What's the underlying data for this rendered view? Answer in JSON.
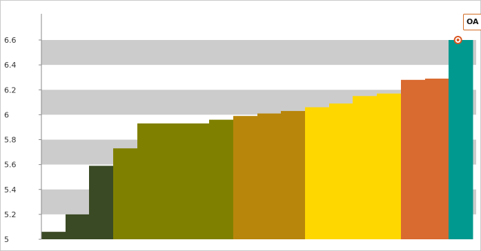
{
  "chart_data": {
    "type": "bar",
    "title": "",
    "xlabel": "",
    "ylabel": "",
    "ylim": [
      5,
      6.7
    ],
    "yticks": [
      5,
      5.2,
      5.4,
      5.6,
      5.8,
      6,
      6.2,
      6.4,
      6.6
    ],
    "ytick_labels": [
      "5",
      "5.2",
      "5.4",
      "5.6",
      "5.8",
      "6",
      "6.2",
      "6.4",
      "6.6"
    ],
    "grid": "alternating horizontal bands",
    "values": [
      5.06,
      5.2,
      5.59,
      5.73,
      5.93,
      5.93,
      5.93,
      5.96,
      5.99,
      6.01,
      6.03,
      6.06,
      6.09,
      6.15,
      6.17,
      6.28,
      6.29,
      6.6
    ],
    "bar_colors": [
      "#3a4a24",
      "#3a4a24",
      "#3a4a24",
      "#808000",
      "#808000",
      "#808000",
      "#808000",
      "#808000",
      "#b8860b",
      "#b8860b",
      "#b8860b",
      "#ffd700",
      "#ffd700",
      "#ffd700",
      "#ffd700",
      "#d96a30",
      "#d96a30",
      "#00998f"
    ],
    "highlight_index": 17,
    "tooltip_label": "OA",
    "colors": {
      "band": "#cccccc",
      "axis": "#888888",
      "marker": "#d9541e"
    }
  }
}
